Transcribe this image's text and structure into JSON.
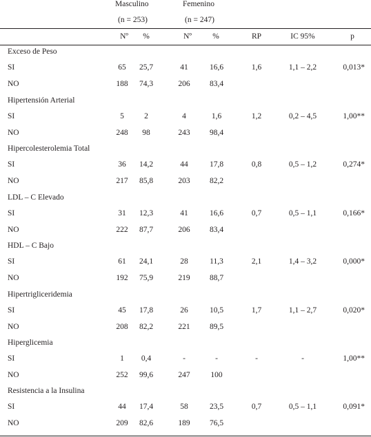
{
  "header": {
    "group_masc": "Masculino",
    "group_fem": "Femenino",
    "n_masc": "(n = 253)",
    "n_fem": "(n = 247)",
    "col_no_masc": "Nº",
    "col_pct_masc": "%",
    "col_no_fem": "Nº",
    "col_pct_fem": "%",
    "col_rp": "RP",
    "col_ic": "IC 95%",
    "col_p": "p"
  },
  "sections": [
    {
      "title": "Exceso de Peso",
      "si": {
        "label": "SI",
        "m_n": "65",
        "m_pct": "25,7",
        "f_n": "41",
        "f_pct": "16,6",
        "rp": "1,6",
        "ic": "1,1 – 2,2",
        "p": "0,013*"
      },
      "no": {
        "label": "NO",
        "m_n": "188",
        "m_pct": "74,3",
        "f_n": "206",
        "f_pct": "83,4"
      }
    },
    {
      "title": "Hipertensión Arterial",
      "si": {
        "label": "SI",
        "m_n": "5",
        "m_pct": "2",
        "f_n": "4",
        "f_pct": "1,6",
        "rp": "1,2",
        "ic": "0,2 – 4,5",
        "p": "1,00**"
      },
      "no": {
        "label": "NO",
        "m_n": "248",
        "m_pct": "98",
        "f_n": "243",
        "f_pct": "98,4"
      }
    },
    {
      "title": "Hipercolesterolemia Total",
      "si": {
        "label": "SI",
        "m_n": "36",
        "m_pct": "14,2",
        "f_n": "44",
        "f_pct": "17,8",
        "rp": "0,8",
        "ic": "0,5 – 1,2",
        "p": "0,274*"
      },
      "no": {
        "label": "NO",
        "m_n": "217",
        "m_pct": "85,8",
        "f_n": "203",
        "f_pct": "82,2"
      }
    },
    {
      "title": "LDL – C Elevado",
      "si": {
        "label": "SI",
        "m_n": "31",
        "m_pct": "12,3",
        "f_n": "41",
        "f_pct": "16,6",
        "rp": "0,7",
        "ic": "0,5 – 1,1",
        "p": "0,166*"
      },
      "no": {
        "label": "NO",
        "m_n": "222",
        "m_pct": "87,7",
        "f_n": "206",
        "f_pct": "83,4"
      }
    },
    {
      "title": "HDL – C Bajo",
      "si": {
        "label": "SI",
        "m_n": "61",
        "m_pct": "24,1",
        "f_n": "28",
        "f_pct": "11,3",
        "rp": "2,1",
        "ic": "1,4 – 3,2",
        "p": "0,000*"
      },
      "no": {
        "label": "NO",
        "m_n": "192",
        "m_pct": "75,9",
        "f_n": "219",
        "f_pct": "88,7"
      }
    },
    {
      "title": "Hipertrigliceridemia",
      "si": {
        "label": "SI",
        "m_n": "45",
        "m_pct": "17,8",
        "f_n": "26",
        "f_pct": "10,5",
        "rp": "1,7",
        "ic": "1,1 – 2,7",
        "p": "0,020*"
      },
      "no": {
        "label": "NO",
        "m_n": "208",
        "m_pct": "82,2",
        "f_n": "221",
        "f_pct": "89,5"
      }
    },
    {
      "title": "Hiperglicemia",
      "si": {
        "label": "SI",
        "m_n": "1",
        "m_pct": "0,4",
        "f_n": "-",
        "f_pct": "-",
        "rp": "-",
        "ic": "-",
        "p": "1,00**"
      },
      "no": {
        "label": "NO",
        "m_n": "252",
        "m_pct": "99,6",
        "f_n": "247",
        "f_pct": "100"
      }
    },
    {
      "title": "Resistencia a la Insulina",
      "si": {
        "label": "SI",
        "m_n": "44",
        "m_pct": "17,4",
        "f_n": "58",
        "f_pct": "23,5",
        "rp": "0,7",
        "ic": "0,5 – 1,1",
        "p": "0,091*"
      },
      "no": {
        "label": "NO",
        "m_n": "209",
        "m_pct": "82,6",
        "f_n": "189",
        "f_pct": "76,5"
      }
    }
  ]
}
